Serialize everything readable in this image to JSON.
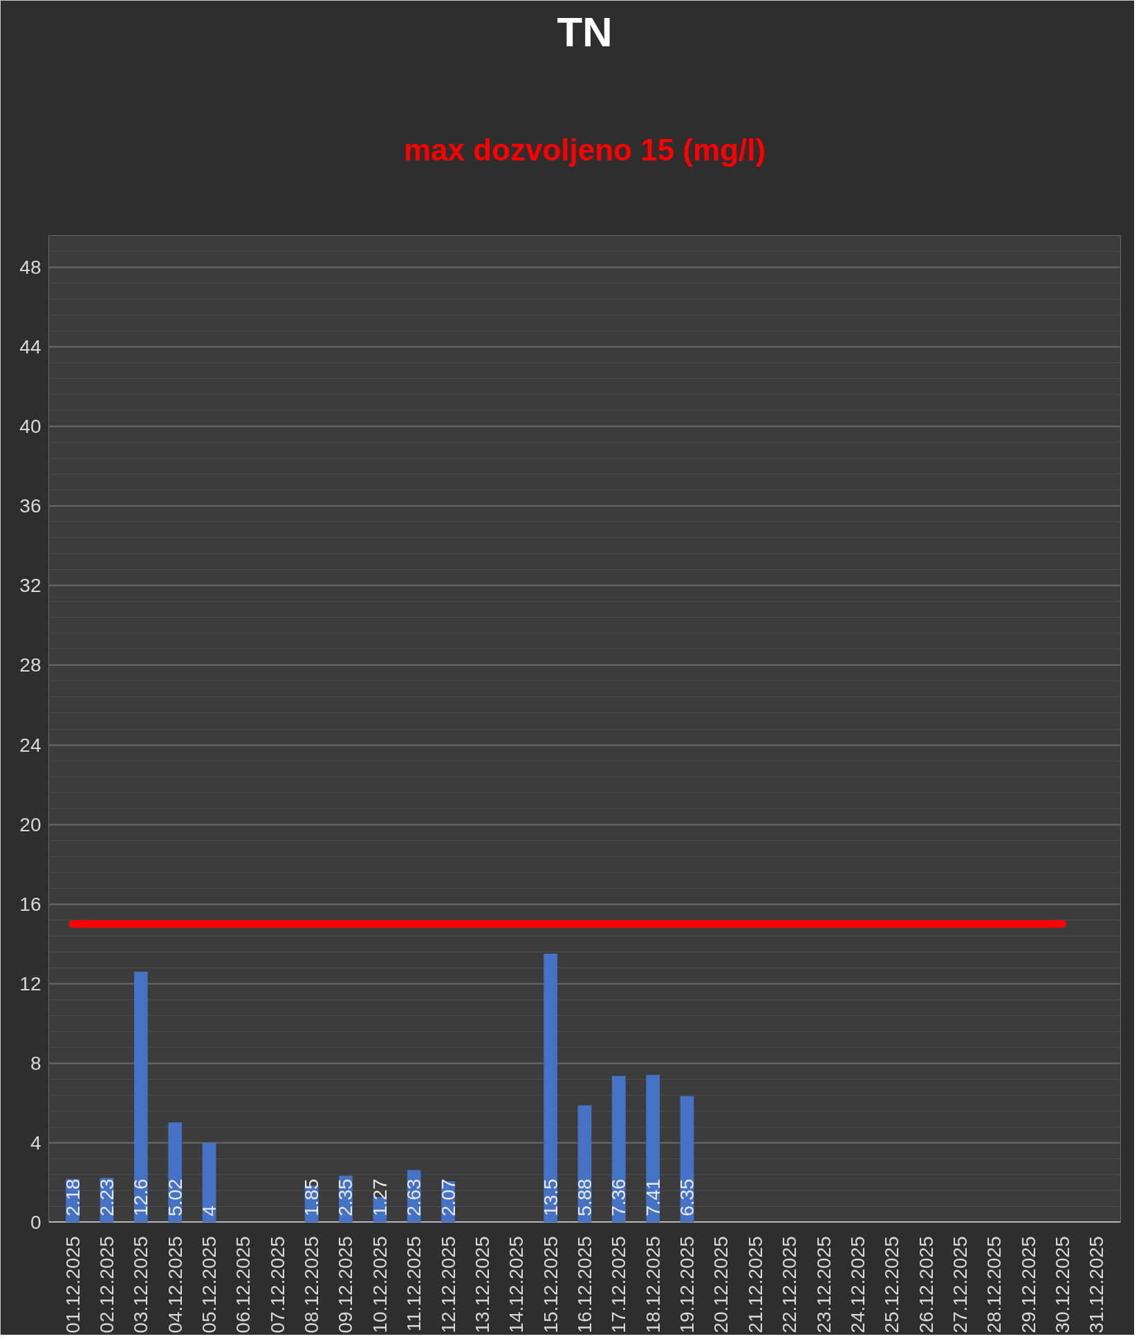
{
  "chart_data": {
    "type": "bar",
    "title": "TN",
    "subtitle": "max dozvoljeno 15 (mg/l)",
    "categories": [
      "01.12.2025",
      "02.12.2025",
      "03.12.2025",
      "04.12.2025",
      "05.12.2025",
      "06.12.2025",
      "07.12.2025",
      "08.12.2025",
      "09.12.2025",
      "10.12.2025",
      "11.12.2025",
      "12.12.2025",
      "13.12.2025",
      "14.12.2025",
      "15.12.2025",
      "16.12.2025",
      "17.12.2025",
      "18.12.2025",
      "19.12.2025",
      "20.12.2025",
      "21.12.2025",
      "22.12.2025",
      "23.12.2025",
      "24.12.2025",
      "25.12.2025",
      "26.12.2025",
      "27.12.2025",
      "28.12.2025",
      "29.12.2025",
      "30.12.2025",
      "31.12.2025"
    ],
    "series": [
      {
        "color": "#4472c4",
        "values": [
          2.18,
          2.23,
          12.6,
          5.02,
          4,
          null,
          null,
          1.85,
          2.35,
          1.27,
          2.63,
          2.07,
          null,
          null,
          13.5,
          5.88,
          7.36,
          7.41,
          6.35,
          null,
          null,
          null,
          null,
          null,
          null,
          null,
          null,
          null,
          null,
          null,
          null
        ],
        "value_labels": [
          "2.18",
          "2.23",
          "12.6",
          "5.02",
          "4",
          null,
          null,
          "1.85",
          "2.35",
          "1.27",
          "2.63",
          "2.07",
          null,
          null,
          "13.5",
          "5.88",
          "7.36",
          "7.41",
          "6.35",
          null,
          null,
          null,
          null,
          null,
          null,
          null,
          null,
          null,
          null,
          null,
          null
        ]
      },
      {
        "type": "line",
        "color": "#ff0000",
        "values": [
          15,
          15,
          15,
          15,
          15,
          15,
          15,
          15,
          15,
          15,
          15,
          15,
          15,
          15,
          15,
          15,
          15,
          15,
          15,
          15,
          15,
          15,
          15,
          15,
          15,
          15,
          15,
          15,
          15,
          15,
          null
        ]
      }
    ],
    "ylim": [
      0,
      49.6
    ],
    "yticks": [
      0,
      4,
      8,
      12,
      16,
      20,
      24,
      28,
      32,
      36,
      40,
      44,
      48
    ],
    "grid": "y"
  }
}
